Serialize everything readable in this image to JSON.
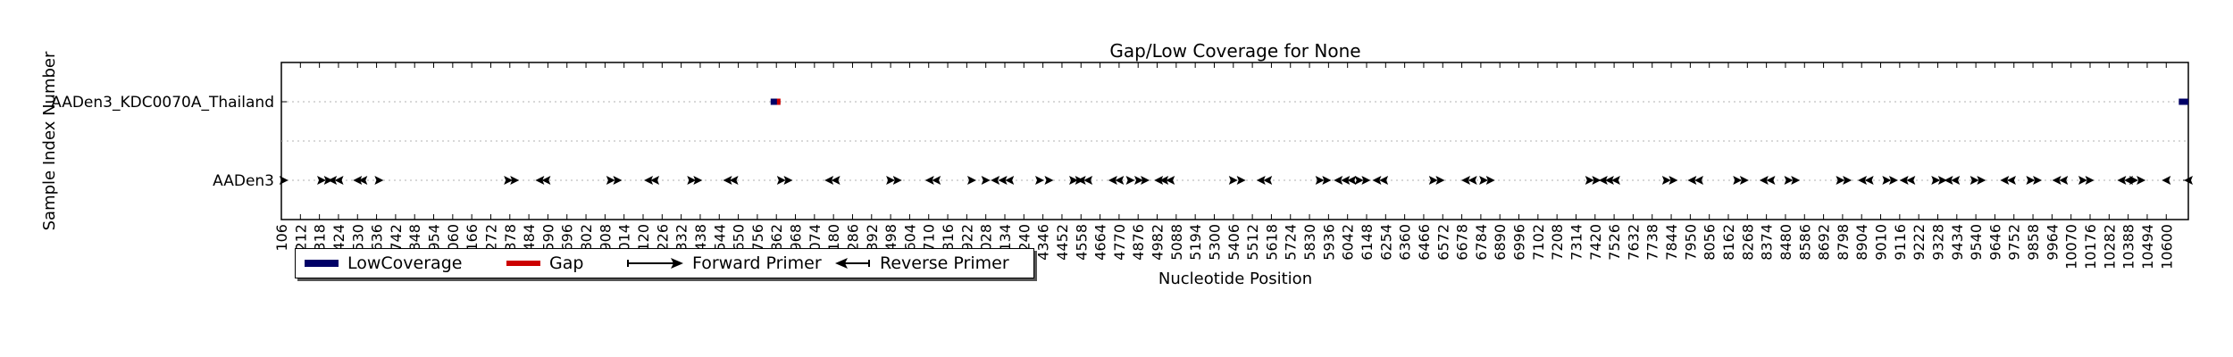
{
  "chart_data": {
    "type": "timeline",
    "title": "Gap/Low Coverage for None",
    "xlabel": "Nucleotide Position",
    "ylabel": "Sample Index Number",
    "xlim": [
      106,
      10723
    ],
    "grid": {
      "y": true,
      "x": false
    },
    "legend_placement": "lower-left outside",
    "samples": [
      "AADen3_KDC0070A_Thailand",
      "AADen3"
    ],
    "x_ticks": [
      106,
      212,
      318,
      424,
      530,
      636,
      742,
      848,
      954,
      1060,
      1166,
      1272,
      1378,
      1484,
      1590,
      1696,
      1802,
      1908,
      2014,
      2120,
      2226,
      2332,
      2438,
      2544,
      2650,
      2756,
      2862,
      2968,
      3074,
      3180,
      3286,
      3392,
      3498,
      3604,
      3710,
      3816,
      3922,
      4028,
      4134,
      4240,
      4346,
      4452,
      4558,
      4664,
      4770,
      4876,
      4982,
      5088,
      5194,
      5300,
      5406,
      5512,
      5618,
      5724,
      5830,
      5936,
      6042,
      6148,
      6254,
      6360,
      6466,
      6572,
      6678,
      6784,
      6890,
      6996,
      7102,
      7208,
      7314,
      7420,
      7526,
      7632,
      7738,
      7844,
      7950,
      8056,
      8162,
      8268,
      8374,
      8480,
      8586,
      8692,
      8798,
      8904,
      9010,
      9116,
      9222,
      9328,
      9434,
      9540,
      9646,
      9752,
      9858,
      9964,
      10070,
      10176,
      10282,
      10388,
      10494,
      10600
    ],
    "series": [
      {
        "name": "LowCoverage",
        "color": "#000066",
        "segments": [
          {
            "sample": "AADen3_KDC0070A_Thailand",
            "start": 2830,
            "end": 2870
          },
          {
            "sample": "AADen3_KDC0070A_Thailand",
            "start": 10670,
            "end": 10723
          }
        ]
      },
      {
        "name": "Gap",
        "color": "#cc0000",
        "segments": [
          {
            "sample": "AADen3_KDC0070A_Thailand",
            "start": 2865,
            "end": 2885
          }
        ]
      },
      {
        "name": "Forward Primer",
        "color": "#000000",
        "positions": [
          120,
          330,
          368,
          650,
          1370,
          1405,
          1940,
          1978,
          2390,
          2425,
          2890,
          2928,
          3498,
          3536,
          3950,
          4028,
          4328,
          4380,
          4517,
          4550,
          4833,
          4880,
          4915,
          5406,
          5450,
          5888,
          5926,
          6107,
          6145,
          6520,
          6558,
          6800,
          6838,
          7390,
          7428,
          7818,
          7856,
          8213,
          8251,
          8498,
          8536,
          8786,
          8824,
          9044,
          9082,
          9317,
          9355,
          9533,
          9571,
          9845,
          9883,
          10136,
          10174,
          10420,
          10460
        ]
      },
      {
        "name": "Reverse Primer",
        "color": "#000000",
        "positions": [
          390,
          427,
          530,
          560,
          1545,
          1580,
          2150,
          2185,
          2590,
          2625,
          3155,
          3192,
          3715,
          3752,
          4080,
          4122,
          4160,
          4560,
          4597,
          4735,
          4772,
          4990,
          5020,
          5055,
          5560,
          5597,
          5990,
          6030,
          6065,
          6205,
          6243,
          6700,
          6738,
          7465,
          7500,
          7535,
          7960,
          7998,
          8360,
          8398,
          8908,
          8946,
          9140,
          9178,
          9388,
          9426,
          9700,
          9738,
          9990,
          10028,
          10352,
          10390,
          10600,
          10723
        ]
      }
    ]
  }
}
